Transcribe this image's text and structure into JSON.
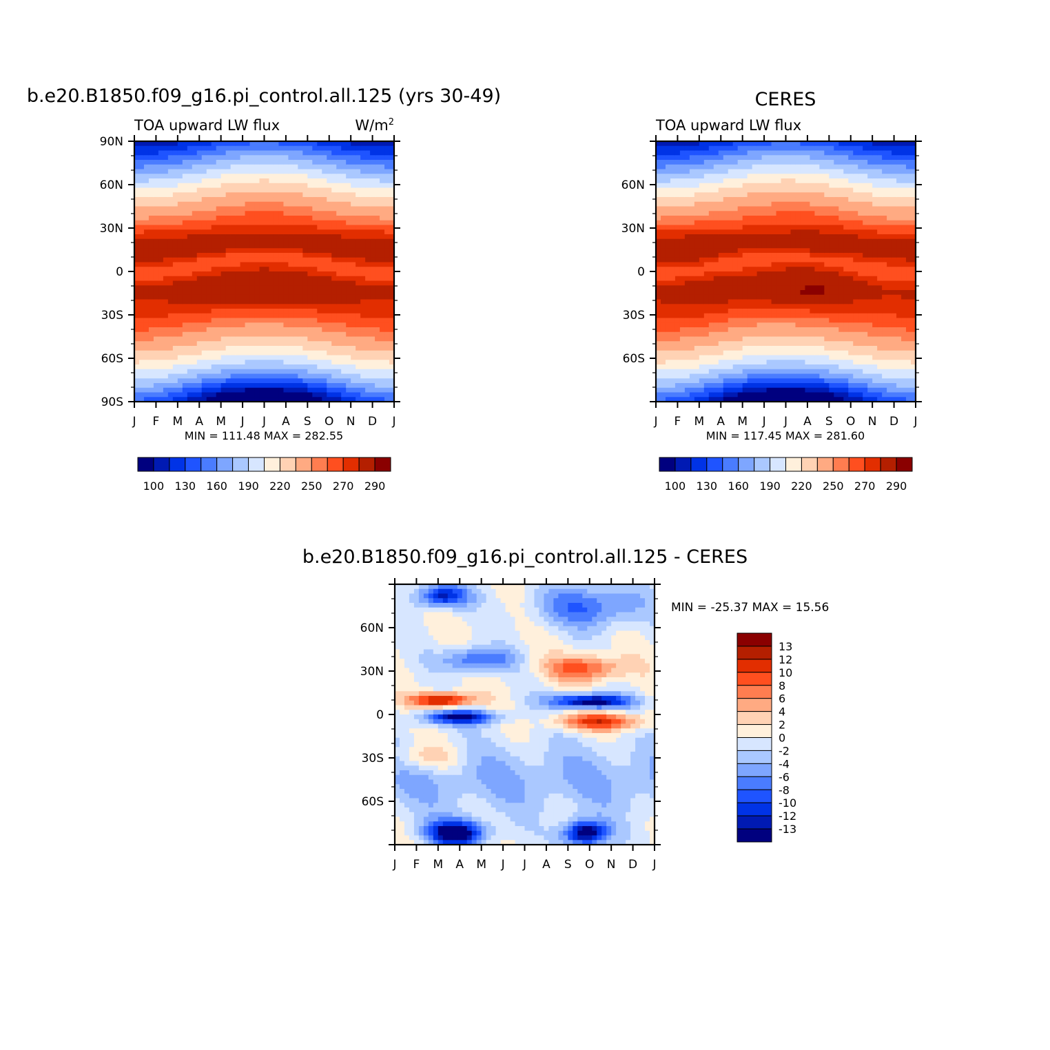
{
  "chart_data": [
    {
      "type": "heatmap",
      "title": "b.e20.B1850.f09_g16.pi_control.all.125 (yrs 30-49)",
      "subtitle_left": "TOA upward LW flux",
      "subtitle_right": "W/m",
      "subtitle_right_sup": "2",
      "x": [
        "J",
        "F",
        "M",
        "A",
        "M",
        "J",
        "J",
        "A",
        "S",
        "O",
        "N",
        "D",
        "J"
      ],
      "ylabels": [
        "90N",
        "60N",
        "30N",
        "0",
        "30S",
        "60S",
        "90S"
      ],
      "ylim": [
        -90,
        90
      ],
      "min": 111.48,
      "max": 282.55,
      "stats": "MIN =  111.48  MAX =  282.55",
      "colorbar": {
        "orientation": "horizontal",
        "labels": [
          "100",
          "130",
          "160",
          "190",
          "220",
          "250",
          "270",
          "290"
        ],
        "colors": [
          "#00007f",
          "#001ab3",
          "#0033e6",
          "#1f54ff",
          "#4a7cff",
          "#7ea6ff",
          "#aac8ff",
          "#d7e6ff",
          "#fff0dc",
          "#ffd2b4",
          "#ffaa82",
          "#ff7d50",
          "#ff4f1f",
          "#e22e00",
          "#b41f00",
          "#8a0000"
        ]
      }
    },
    {
      "type": "heatmap",
      "title": "CERES",
      "subtitle_left": "TOA upward LW flux",
      "x": [
        "J",
        "F",
        "M",
        "A",
        "M",
        "J",
        "J",
        "A",
        "S",
        "O",
        "N",
        "D",
        "J"
      ],
      "ylabels": [
        "60N",
        "30N",
        "0",
        "30S",
        "60S"
      ],
      "ylim": [
        -90,
        90
      ],
      "min": 117.45,
      "max": 281.6,
      "stats": "MIN =  117.45  MAX =  281.60",
      "colorbar": {
        "orientation": "horizontal",
        "labels": [
          "100",
          "130",
          "160",
          "190",
          "220",
          "250",
          "270",
          "290"
        ]
      }
    },
    {
      "type": "heatmap",
      "title": "b.e20.B1850.f09_g16.pi_control.all.125 - CERES",
      "x": [
        "J",
        "F",
        "M",
        "A",
        "M",
        "J",
        "J",
        "A",
        "S",
        "O",
        "N",
        "D",
        "J"
      ],
      "ylabels": [
        "60N",
        "30N",
        "0",
        "30S",
        "60S"
      ],
      "ylim": [
        -90,
        90
      ],
      "min": -25.37,
      "max": 15.56,
      "stats": "MIN = -25.37  MAX =   15.56",
      "colorbar": {
        "orientation": "vertical",
        "labels": [
          "13",
          "12",
          "10",
          "8",
          "6",
          "4",
          "2",
          "0",
          "-2",
          "-4",
          "-6",
          "-8",
          "-10",
          "-12",
          "-13"
        ],
        "colors": [
          "#8a0000",
          "#b41f00",
          "#e22e00",
          "#ff4f1f",
          "#ff7d50",
          "#ffaa82",
          "#ffd2b4",
          "#fff0dc",
          "#d7e6ff",
          "#aac8ff",
          "#7ea6ff",
          "#4a7cff",
          "#1f54ff",
          "#0033e6",
          "#001ab3",
          "#00007f"
        ]
      }
    }
  ]
}
